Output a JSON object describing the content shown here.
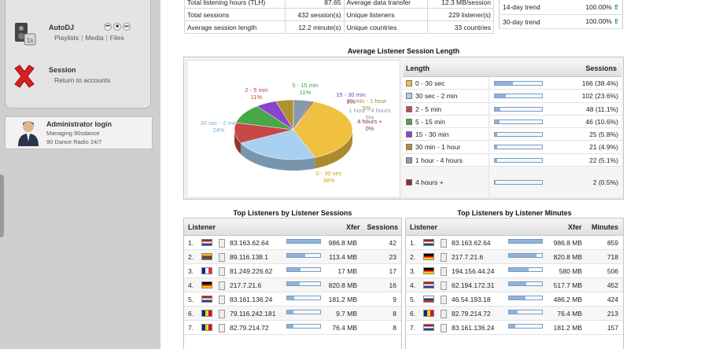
{
  "sidebar": {
    "autodj": {
      "title": "AutoDJ",
      "links": [
        "Playlists",
        "Media",
        "Files"
      ]
    },
    "session": {
      "title": "Session",
      "sub": "Return to accounts"
    },
    "admin": {
      "title": "Administrator login",
      "line1": "Managing 90sdance",
      "line2": "90 Dance Radio 24/7"
    }
  },
  "stats": [
    {
      "l1": "Total listening hours (TLH)",
      "v1": "87.65",
      "l2": "Average data transfer",
      "v2": "12.3 MB/session"
    },
    {
      "l1": "Total sessions",
      "v1": "432 session(s)",
      "l2": "Unique listeners",
      "v2": "229 listener(s)"
    },
    {
      "l1": "Average session length",
      "v1": "12.2 minute(s)",
      "l2": "Unique countries",
      "v2": "33 countries"
    }
  ],
  "trends": [
    {
      "label": "14-day trend",
      "value": "100.00%"
    },
    {
      "label": "30-day trend",
      "value": "100.00%"
    }
  ],
  "session_length": {
    "title": "Average Listener Session Length",
    "col_length": "Length",
    "col_sessions": "Sessions",
    "rows": [
      {
        "label": "0 - 30 sec",
        "value": "166 (38.4%)",
        "pct": 38.4,
        "color": "#f0c040"
      },
      {
        "label": "30 sec - 2 min",
        "value": "102 (23.6%)",
        "pct": 23.6,
        "color": "#a8d0f0"
      },
      {
        "label": "2 - 5 min",
        "value": "48 (11.1%)",
        "pct": 11.1,
        "color": "#c84848"
      },
      {
        "label": "5 - 15 min",
        "value": "46 (10.6%)",
        "pct": 10.6,
        "color": "#48a848"
      },
      {
        "label": "15 - 30 min",
        "value": "25 (5.8%)",
        "pct": 5.8,
        "color": "#8844cc"
      },
      {
        "label": "30 min - 1 hour",
        "value": "21 (4.9%)",
        "pct": 4.9,
        "color": "#b09030"
      },
      {
        "label": "1 hour - 4 hours",
        "value": "22 (5.1%)",
        "pct": 5.1,
        "color": "#8899aa"
      },
      {
        "label": "4 hours +",
        "value": "2 (0.5%)",
        "pct": 0.5,
        "color": "#883030"
      }
    ],
    "pie_labels": [
      {
        "name": "0 - 30 sec",
        "pct": "38%",
        "color": "#c8a020"
      },
      {
        "name": "30 sec - 2 min",
        "pct": "24%",
        "color": "#80b0d8"
      },
      {
        "name": "2 - 5 min",
        "pct": "11%",
        "color": "#c84040"
      },
      {
        "name": "5 - 15 min",
        "pct": "11%",
        "color": "#40a040"
      },
      {
        "name": "15 - 30 min",
        "pct": "6%",
        "color": "#8040c8"
      },
      {
        "name": "30 min - 1 hour",
        "pct": "5%",
        "color": "#a08830"
      },
      {
        "name": "1 hour - 4 hours",
        "pct": "5%",
        "color": "#8899aa"
      },
      {
        "name": "4 hours +",
        "pct": "0%",
        "color": "#883030"
      }
    ]
  },
  "top_sessions": {
    "title": "Top Listeners by Listener Sessions",
    "col_listener": "Listener",
    "col_xfer": "Xfer",
    "col_metric": "Sessions",
    "rows": [
      {
        "rank": "1.",
        "ip": "83.163.62.64",
        "xfer": "986.8 MB",
        "metric": "42",
        "flag": "nl",
        "bar": 1.0
      },
      {
        "rank": "2.",
        "ip": "89.116.138.1",
        "xfer": "113.4 MB",
        "metric": "23",
        "flag": "lt",
        "bar": 0.55
      },
      {
        "rank": "3.",
        "ip": "81.249.226.62",
        "xfer": "17 MB",
        "metric": "17",
        "flag": "fr",
        "bar": 0.4
      },
      {
        "rank": "4.",
        "ip": "217.7.21.6",
        "xfer": "820.8 MB",
        "metric": "16",
        "flag": "de",
        "bar": 0.38
      },
      {
        "rank": "5.",
        "ip": "83.161.136.24",
        "xfer": "181.2 MB",
        "metric": "9",
        "flag": "nl",
        "bar": 0.21
      },
      {
        "rank": "6.",
        "ip": "79.116.242.181",
        "xfer": "9.7 MB",
        "metric": "8",
        "flag": "ro",
        "bar": 0.19
      },
      {
        "rank": "7.",
        "ip": "82.79.214.72",
        "xfer": "76.4 MB",
        "metric": "8",
        "flag": "ro",
        "bar": 0.19
      }
    ]
  },
  "top_minutes": {
    "title": "Top Listeners by Listener Minutes",
    "col_listener": "Listener",
    "col_xfer": "Xfer",
    "col_metric": "Minutes",
    "rows": [
      {
        "rank": "1.",
        "ip": "83.163.62.64",
        "xfer": "986.8 MB",
        "metric": "859",
        "flag": "nl",
        "bar": 1.0
      },
      {
        "rank": "2.",
        "ip": "217.7.21.6",
        "xfer": "820.8 MB",
        "metric": "718",
        "flag": "de",
        "bar": 0.84
      },
      {
        "rank": "3.",
        "ip": "194.156.44.24",
        "xfer": "580 MB",
        "metric": "506",
        "flag": "de",
        "bar": 0.59
      },
      {
        "rank": "4.",
        "ip": "62.194.172.31",
        "xfer": "517.7 MB",
        "metric": "452",
        "flag": "nl",
        "bar": 0.53
      },
      {
        "rank": "5.",
        "ip": "46.54.193.18",
        "xfer": "486.2 MB",
        "metric": "424",
        "flag": "ru",
        "bar": 0.49
      },
      {
        "rank": "6.",
        "ip": "82.79.214.72",
        "xfer": "76.4 MB",
        "metric": "213",
        "flag": "ro",
        "bar": 0.25
      },
      {
        "rank": "7.",
        "ip": "83.161.136.24",
        "xfer": "181.2 MB",
        "metric": "157",
        "flag": "nl",
        "bar": 0.18
      }
    ]
  }
}
